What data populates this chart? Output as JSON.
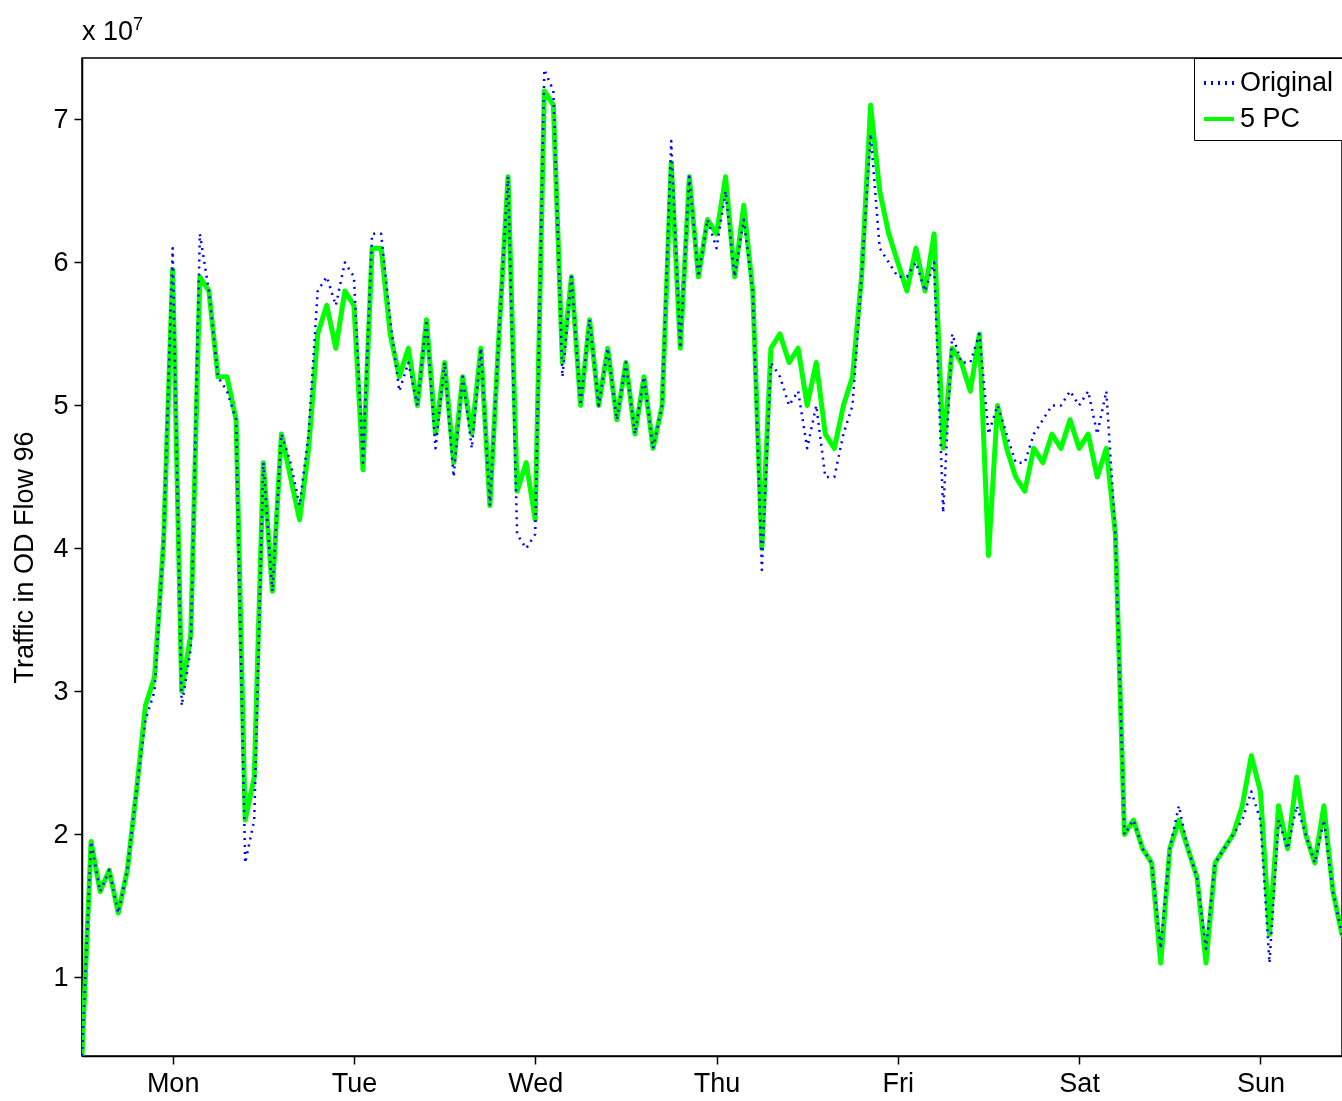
{
  "chart_data": {
    "type": "line",
    "ylabel": "Traffic in OD Flow 96",
    "annotations": [
      "x 10$^{7}$"
    ],
    "legend": "top right",
    "ylim": [
      0.45,
      7.43
    ],
    "yticks": [
      1,
      2,
      3,
      4,
      5,
      6,
      7
    ],
    "categories": [
      null,
      null,
      null,
      null,
      null,
      null,
      null,
      null,
      null,
      null,
      "Mon",
      null,
      null,
      null,
      null,
      null,
      null,
      null,
      null,
      null,
      null,
      null,
      null,
      null,
      null,
      null,
      null,
      null,
      null,
      null,
      "Tue",
      null,
      null,
      null,
      null,
      null,
      null,
      null,
      null,
      null,
      null,
      null,
      null,
      null,
      null,
      null,
      null,
      null,
      null,
      null,
      "Wed",
      null,
      null,
      null,
      null,
      null,
      null,
      null,
      null,
      null,
      null,
      null,
      null,
      null,
      null,
      null,
      null,
      null,
      null,
      null,
      "Thu",
      null,
      null,
      null,
      null,
      null,
      null,
      null,
      null,
      null,
      null,
      null,
      null,
      null,
      null,
      null,
      null,
      null,
      null,
      null,
      "Fri",
      null,
      null,
      null,
      null,
      null,
      null,
      null,
      null,
      null,
      null,
      null,
      null,
      null,
      null,
      null,
      null,
      null,
      null,
      null,
      "Sat",
      null,
      null,
      null,
      null,
      null,
      null,
      null,
      null,
      null,
      null,
      null,
      null,
      null,
      null,
      null,
      null,
      null,
      null,
      null,
      "Sun",
      null,
      null,
      null,
      null,
      null,
      null,
      null,
      null,
      null
    ],
    "series": [
      {
        "name": "Original",
        "color": "#0000ff",
        "line_style": "dotted",
        "values": [
          0.45,
          1.95,
          1.6,
          1.75,
          1.45,
          1.75,
          2.3,
          2.8,
          3.0,
          4.05,
          6.1,
          2.9,
          3.3,
          6.2,
          5.8,
          5.2,
          5.1,
          4.9,
          1.8,
          2.1,
          4.6,
          3.7,
          4.8,
          4.6,
          4.3,
          4.8,
          5.8,
          5.9,
          5.7,
          6.0,
          5.9,
          4.6,
          6.2,
          6.2,
          5.6,
          5.1,
          5.3,
          5.0,
          5.6,
          4.7,
          5.3,
          4.5,
          5.2,
          4.7,
          5.4,
          4.3,
          5.5,
          6.6,
          4.1,
          4.0,
          4.1,
          7.35,
          7.2,
          5.2,
          5.9,
          5.0,
          5.6,
          5.0,
          5.4,
          4.9,
          5.3,
          4.8,
          5.2,
          4.7,
          5.0,
          6.85,
          5.4,
          6.6,
          5.9,
          6.3,
          6.1,
          6.5,
          5.9,
          6.3,
          5.8,
          3.85,
          5.3,
          5.2,
          5.0,
          5.1,
          4.7,
          5.0,
          4.5,
          4.5,
          4.8,
          5.0,
          5.9,
          6.9,
          6.1,
          6.0,
          5.9,
          5.9,
          6.0,
          5.8,
          6.0,
          4.25,
          5.5,
          5.3,
          5.3,
          5.5,
          4.8,
          5.0,
          4.8,
          4.6,
          4.6,
          4.8,
          4.9,
          5.0,
          5.0,
          5.1,
          5.0,
          5.1,
          4.8,
          5.1,
          4.1,
          2.0,
          2.1,
          1.9,
          1.8,
          1.2,
          1.9,
          2.2,
          1.9,
          1.7,
          1.2,
          1.8,
          1.9,
          2.0,
          2.1,
          2.3,
          2.1,
          1.1,
          2.1,
          1.9,
          2.2,
          2.0,
          1.8,
          2.1,
          1.6,
          1.3
        ]
      },
      {
        "name": "5 PC",
        "color": "#00ff00",
        "line_style": "solid",
        "values": [
          0.45,
          1.95,
          1.6,
          1.75,
          1.45,
          1.75,
          2.3,
          2.9,
          3.1,
          4.05,
          5.95,
          3.0,
          3.4,
          5.9,
          5.8,
          5.2,
          5.2,
          4.9,
          2.1,
          2.4,
          4.6,
          3.7,
          4.8,
          4.5,
          4.2,
          4.7,
          5.5,
          5.7,
          5.4,
          5.8,
          5.7,
          4.55,
          6.1,
          6.1,
          5.5,
          5.2,
          5.4,
          5.0,
          5.6,
          4.8,
          5.3,
          4.6,
          5.2,
          4.8,
          5.4,
          4.3,
          5.5,
          6.6,
          4.4,
          4.6,
          4.2,
          7.2,
          7.1,
          5.3,
          5.9,
          5.0,
          5.6,
          5.0,
          5.4,
          4.9,
          5.3,
          4.8,
          5.2,
          4.7,
          5.0,
          6.7,
          5.4,
          6.6,
          5.9,
          6.3,
          6.2,
          6.6,
          5.9,
          6.4,
          5.8,
          4.0,
          5.4,
          5.5,
          5.3,
          5.4,
          5.0,
          5.3,
          4.8,
          4.7,
          5.0,
          5.2,
          5.9,
          7.1,
          6.5,
          6.2,
          6.0,
          5.8,
          6.1,
          5.8,
          6.2,
          4.7,
          5.4,
          5.3,
          5.1,
          5.5,
          3.95,
          5.0,
          4.7,
          4.5,
          4.4,
          4.7,
          4.6,
          4.8,
          4.7,
          4.9,
          4.7,
          4.8,
          4.5,
          4.7,
          4.1,
          2.0,
          2.1,
          1.9,
          1.8,
          1.1,
          1.9,
          2.1,
          1.9,
          1.7,
          1.1,
          1.8,
          1.9,
          2.0,
          2.2,
          2.55,
          2.3,
          1.3,
          2.2,
          1.9,
          2.4,
          2.0,
          1.8,
          2.2,
          1.6,
          1.3
        ]
      }
    ]
  }
}
